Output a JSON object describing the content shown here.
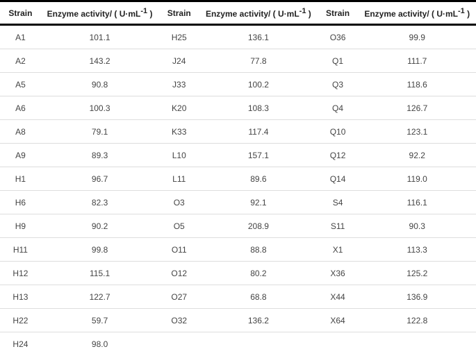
{
  "header": {
    "strain": "Strain",
    "activity_prefix": "Enzyme activity/ ( U·mL",
    "activity_sup": "-1",
    "activity_suffix": " )"
  },
  "rows": [
    [
      "A1",
      "101.1",
      "H25",
      "136.1",
      "O36",
      "99.9"
    ],
    [
      "A2",
      "143.2",
      "J24",
      "77.8",
      "Q1",
      "111.7"
    ],
    [
      "A5",
      "90.8",
      "J33",
      "100.2",
      "Q3",
      "118.6"
    ],
    [
      "A6",
      "100.3",
      "K20",
      "108.3",
      "Q4",
      "126.7"
    ],
    [
      "A8",
      "79.1",
      "K33",
      "117.4",
      "Q10",
      "123.1"
    ],
    [
      "A9",
      "89.3",
      "L10",
      "157.1",
      "Q12",
      "92.2"
    ],
    [
      "H1",
      "96.7",
      "L11",
      "89.6",
      "Q14",
      "119.0"
    ],
    [
      "H6",
      "82.3",
      "O3",
      "92.1",
      "S4",
      "116.1"
    ],
    [
      "H9",
      "90.2",
      "O5",
      "208.9",
      "S11",
      "90.3"
    ],
    [
      "H11",
      "99.8",
      "O11",
      "88.8",
      "X1",
      "113.3"
    ],
    [
      "H12",
      "115.1",
      "O12",
      "80.2",
      "X36",
      "125.2"
    ],
    [
      "H13",
      "122.7",
      "O27",
      "68.8",
      "X44",
      "136.9"
    ],
    [
      "H22",
      "59.7",
      "O32",
      "136.2",
      "X64",
      "122.8"
    ],
    [
      "H24",
      "98.0",
      "",
      "",
      "",
      ""
    ]
  ]
}
